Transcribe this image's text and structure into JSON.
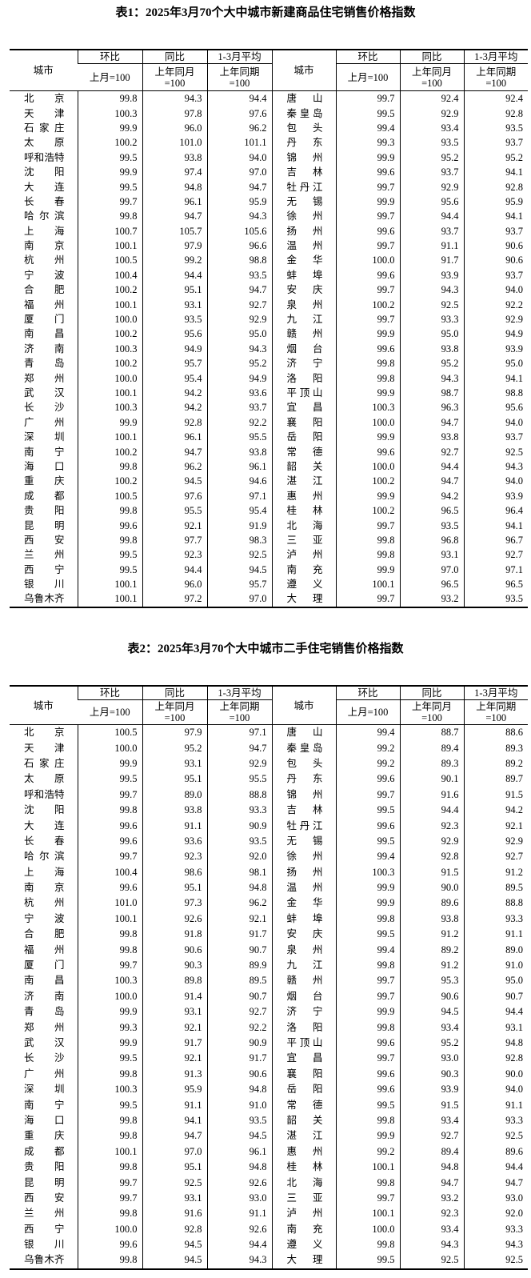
{
  "headers": {
    "city": "城市",
    "hb": "环比",
    "tb": "同比",
    "avg": "1-3月平均",
    "hb_sub": "上月=100",
    "tb_sub": "上年同月\n=100",
    "avg_sub": "上年同期\n=100"
  },
  "tables": [
    {
      "title": "表1：2025年3月70个大中城市新建商品住宅销售价格指数",
      "rows": [
        [
          "北京",
          "99.8",
          "94.3",
          "94.4",
          "唐山",
          "99.7",
          "92.4",
          "92.4"
        ],
        [
          "天津",
          "100.3",
          "97.8",
          "97.6",
          "秦皇岛",
          "99.5",
          "92.9",
          "92.8"
        ],
        [
          "石家庄",
          "99.9",
          "96.0",
          "96.2",
          "包头",
          "99.4",
          "93.4",
          "93.5"
        ],
        [
          "太原",
          "100.2",
          "101.0",
          "101.1",
          "丹东",
          "99.3",
          "93.5",
          "93.7"
        ],
        [
          "呼和浩特",
          "99.5",
          "93.8",
          "94.0",
          "锦州",
          "99.9",
          "95.2",
          "95.2"
        ],
        [
          "沈阳",
          "99.9",
          "97.4",
          "97.0",
          "吉林",
          "99.6",
          "93.7",
          "94.1"
        ],
        [
          "大连",
          "99.5",
          "94.8",
          "94.7",
          "牡丹江",
          "99.7",
          "92.9",
          "92.8"
        ],
        [
          "长春",
          "99.7",
          "96.1",
          "95.9",
          "无锡",
          "99.9",
          "95.6",
          "95.9"
        ],
        [
          "哈尔滨",
          "99.8",
          "94.7",
          "94.3",
          "徐州",
          "99.7",
          "94.4",
          "94.1"
        ],
        [
          "上海",
          "100.7",
          "105.7",
          "105.6",
          "扬州",
          "99.6",
          "93.7",
          "93.7"
        ],
        [
          "南京",
          "100.1",
          "97.9",
          "96.6",
          "温州",
          "99.7",
          "91.1",
          "90.6"
        ],
        [
          "杭州",
          "100.5",
          "99.2",
          "98.8",
          "金华",
          "100.0",
          "91.7",
          "90.6"
        ],
        [
          "宁波",
          "100.4",
          "94.4",
          "93.5",
          "蚌埠",
          "99.6",
          "93.9",
          "93.7"
        ],
        [
          "合肥",
          "100.2",
          "95.1",
          "94.7",
          "安庆",
          "99.7",
          "94.3",
          "94.0"
        ],
        [
          "福州",
          "100.1",
          "93.1",
          "92.7",
          "泉州",
          "100.2",
          "92.5",
          "92.2"
        ],
        [
          "厦门",
          "100.0",
          "93.5",
          "92.9",
          "九江",
          "99.7",
          "93.3",
          "92.9"
        ],
        [
          "南昌",
          "100.2",
          "95.6",
          "95.0",
          "赣州",
          "99.9",
          "95.0",
          "94.9"
        ],
        [
          "济南",
          "100.3",
          "94.9",
          "94.3",
          "烟台",
          "99.6",
          "93.8",
          "93.9"
        ],
        [
          "青岛",
          "100.2",
          "95.7",
          "95.2",
          "济宁",
          "99.8",
          "95.2",
          "95.0"
        ],
        [
          "郑州",
          "100.0",
          "95.4",
          "94.9",
          "洛阳",
          "99.8",
          "94.3",
          "94.1"
        ],
        [
          "武汉",
          "100.1",
          "94.2",
          "93.6",
          "平顶山",
          "99.9",
          "98.7",
          "98.8"
        ],
        [
          "长沙",
          "100.3",
          "94.2",
          "93.7",
          "宜昌",
          "100.3",
          "96.3",
          "95.6"
        ],
        [
          "广州",
          "99.9",
          "92.8",
          "92.2",
          "襄阳",
          "100.0",
          "94.7",
          "94.0"
        ],
        [
          "深圳",
          "100.1",
          "96.1",
          "95.5",
          "岳阳",
          "99.9",
          "93.8",
          "93.7"
        ],
        [
          "南宁",
          "100.2",
          "94.7",
          "93.8",
          "常德",
          "99.6",
          "92.7",
          "92.5"
        ],
        [
          "海口",
          "99.8",
          "96.2",
          "96.1",
          "韶关",
          "100.0",
          "94.4",
          "94.3"
        ],
        [
          "重庆",
          "100.2",
          "94.5",
          "94.6",
          "湛江",
          "100.2",
          "94.7",
          "94.0"
        ],
        [
          "成都",
          "100.5",
          "97.6",
          "97.1",
          "惠州",
          "99.9",
          "94.2",
          "93.9"
        ],
        [
          "贵阳",
          "99.8",
          "95.5",
          "95.4",
          "桂林",
          "100.2",
          "96.5",
          "96.4"
        ],
        [
          "昆明",
          "99.6",
          "92.1",
          "91.9",
          "北海",
          "99.7",
          "93.5",
          "94.1"
        ],
        [
          "西安",
          "99.8",
          "97.7",
          "98.3",
          "三亚",
          "99.8",
          "96.8",
          "96.7"
        ],
        [
          "兰州",
          "99.5",
          "92.3",
          "92.5",
          "泸州",
          "99.8",
          "93.1",
          "92.7"
        ],
        [
          "西宁",
          "99.5",
          "94.4",
          "94.5",
          "南充",
          "99.9",
          "97.0",
          "97.1"
        ],
        [
          "银川",
          "100.1",
          "96.0",
          "95.7",
          "遵义",
          "100.1",
          "96.5",
          "96.5"
        ],
        [
          "乌鲁木齐",
          "100.1",
          "97.2",
          "97.0",
          "大理",
          "99.7",
          "93.2",
          "93.5"
        ]
      ]
    },
    {
      "title": "表2：2025年3月70个大中城市二手住宅销售价格指数",
      "rows": [
        [
          "北京",
          "100.5",
          "97.9",
          "97.1",
          "唐山",
          "99.4",
          "88.7",
          "88.6"
        ],
        [
          "天津",
          "100.0",
          "95.2",
          "94.7",
          "秦皇岛",
          "99.2",
          "89.4",
          "89.3"
        ],
        [
          "石家庄",
          "99.9",
          "93.1",
          "92.9",
          "包头",
          "99.2",
          "89.3",
          "89.2"
        ],
        [
          "太原",
          "99.5",
          "95.1",
          "95.5",
          "丹东",
          "99.6",
          "90.1",
          "89.7"
        ],
        [
          "呼和浩特",
          "99.7",
          "89.0",
          "88.8",
          "锦州",
          "99.7",
          "91.6",
          "91.5"
        ],
        [
          "沈阳",
          "99.8",
          "93.8",
          "93.3",
          "吉林",
          "99.5",
          "94.4",
          "94.2"
        ],
        [
          "大连",
          "99.6",
          "91.1",
          "90.9",
          "牡丹江",
          "99.6",
          "92.3",
          "92.1"
        ],
        [
          "长春",
          "99.6",
          "93.6",
          "93.5",
          "无锡",
          "99.5",
          "92.9",
          "92.9"
        ],
        [
          "哈尔滨",
          "99.7",
          "92.3",
          "92.0",
          "徐州",
          "99.4",
          "92.8",
          "92.7"
        ],
        [
          "上海",
          "100.4",
          "98.6",
          "98.1",
          "扬州",
          "100.3",
          "91.5",
          "91.2"
        ],
        [
          "南京",
          "99.6",
          "95.1",
          "94.8",
          "温州",
          "99.9",
          "90.0",
          "89.5"
        ],
        [
          "杭州",
          "101.0",
          "97.3",
          "96.2",
          "金华",
          "99.9",
          "89.6",
          "88.8"
        ],
        [
          "宁波",
          "100.1",
          "92.6",
          "92.1",
          "蚌埠",
          "99.8",
          "93.8",
          "93.3"
        ],
        [
          "合肥",
          "99.8",
          "91.8",
          "91.7",
          "安庆",
          "99.5",
          "91.2",
          "91.1"
        ],
        [
          "福州",
          "99.8",
          "90.6",
          "90.7",
          "泉州",
          "99.4",
          "89.2",
          "89.0"
        ],
        [
          "厦门",
          "99.7",
          "90.3",
          "89.9",
          "九江",
          "99.8",
          "91.2",
          "91.0"
        ],
        [
          "南昌",
          "100.3",
          "89.8",
          "89.5",
          "赣州",
          "99.7",
          "95.3",
          "95.0"
        ],
        [
          "济南",
          "100.0",
          "91.4",
          "90.7",
          "烟台",
          "99.7",
          "90.6",
          "90.7"
        ],
        [
          "青岛",
          "99.9",
          "93.1",
          "92.7",
          "济宁",
          "99.9",
          "94.5",
          "94.4"
        ],
        [
          "郑州",
          "99.3",
          "92.1",
          "92.2",
          "洛阳",
          "99.8",
          "93.4",
          "93.1"
        ],
        [
          "武汉",
          "99.9",
          "91.7",
          "90.9",
          "平顶山",
          "99.6",
          "95.2",
          "94.8"
        ],
        [
          "长沙",
          "99.5",
          "92.1",
          "91.7",
          "宜昌",
          "99.7",
          "93.0",
          "92.8"
        ],
        [
          "广州",
          "99.8",
          "91.3",
          "90.6",
          "襄阳",
          "99.6",
          "90.3",
          "90.0"
        ],
        [
          "深圳",
          "100.3",
          "95.9",
          "94.8",
          "岳阳",
          "99.6",
          "93.9",
          "94.0"
        ],
        [
          "南宁",
          "99.5",
          "91.1",
          "91.0",
          "常德",
          "99.5",
          "91.5",
          "91.1"
        ],
        [
          "海口",
          "99.8",
          "94.1",
          "93.5",
          "韶关",
          "99.8",
          "93.4",
          "93.3"
        ],
        [
          "重庆",
          "99.8",
          "94.7",
          "94.5",
          "湛江",
          "99.9",
          "92.7",
          "92.5"
        ],
        [
          "成都",
          "100.1",
          "97.0",
          "96.1",
          "惠州",
          "99.2",
          "89.4",
          "89.6"
        ],
        [
          "贵阳",
          "99.8",
          "95.1",
          "94.8",
          "桂林",
          "100.1",
          "94.8",
          "94.4"
        ],
        [
          "昆明",
          "99.7",
          "92.5",
          "92.6",
          "北海",
          "99.8",
          "94.7",
          "94.7"
        ],
        [
          "西安",
          "99.7",
          "93.1",
          "93.0",
          "三亚",
          "99.7",
          "93.2",
          "93.0"
        ],
        [
          "兰州",
          "99.8",
          "91.6",
          "91.1",
          "泸州",
          "100.1",
          "92.3",
          "92.0"
        ],
        [
          "西宁",
          "100.0",
          "92.8",
          "92.6",
          "南充",
          "100.0",
          "93.4",
          "93.3"
        ],
        [
          "银川",
          "99.6",
          "94.5",
          "94.4",
          "遵义",
          "99.8",
          "94.3",
          "94.3"
        ],
        [
          "乌鲁木齐",
          "99.8",
          "94.5",
          "94.3",
          "大理",
          "99.5",
          "92.5",
          "92.5"
        ]
      ]
    }
  ]
}
